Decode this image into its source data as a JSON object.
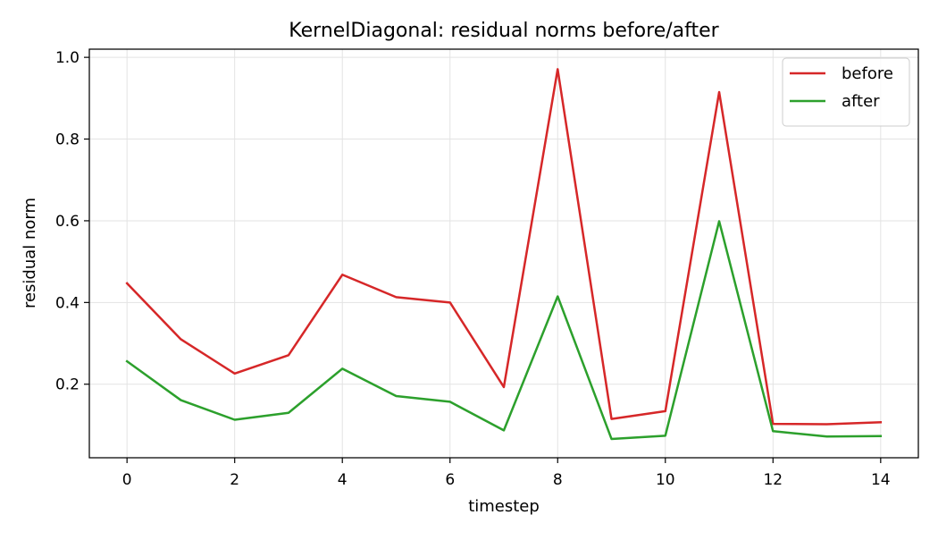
{
  "chart_data": {
    "type": "line",
    "title": "KernelDiagonal: residual norms before/after",
    "xlabel": "timestep",
    "ylabel": "residual norm",
    "x": [
      0,
      1,
      2,
      3,
      4,
      5,
      6,
      7,
      8,
      9,
      10,
      11,
      12,
      13,
      14
    ],
    "xlim": [
      -0.7,
      14.7
    ],
    "ylim": [
      0.02,
      1.02
    ],
    "xticks": [
      0,
      2,
      4,
      6,
      8,
      10,
      12,
      14
    ],
    "yticks": [
      0.2,
      0.4,
      0.6,
      0.8,
      1.0
    ],
    "xtick_labels": [
      "0",
      "2",
      "4",
      "6",
      "8",
      "10",
      "12",
      "14"
    ],
    "ytick_labels": [
      "0.2",
      "0.4",
      "0.6",
      "0.8",
      "1.0"
    ],
    "grid": true,
    "legend_position": "top-right",
    "series": [
      {
        "name": "before",
        "color": "#d62728",
        "values": [
          0.447,
          0.31,
          0.226,
          0.271,
          0.468,
          0.413,
          0.4,
          0.193,
          0.971,
          0.115,
          0.134,
          0.915,
          0.103,
          0.102,
          0.107
        ]
      },
      {
        "name": "after",
        "color": "#2ca02c",
        "values": [
          0.256,
          0.161,
          0.113,
          0.13,
          0.238,
          0.171,
          0.157,
          0.087,
          0.415,
          0.066,
          0.074,
          0.599,
          0.085,
          0.072,
          0.073
        ]
      }
    ]
  }
}
